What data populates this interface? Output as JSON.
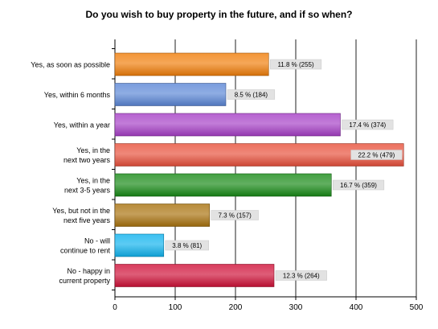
{
  "chart_data": {
    "type": "bar",
    "orientation": "horizontal",
    "title": "Do you wish to buy property in the future, and if so when?",
    "xlabel": "",
    "ylabel": "",
    "xlim": [
      0,
      500
    ],
    "x_ticks": [
      0,
      100,
      200,
      300,
      400,
      500
    ],
    "grid": true,
    "legend": "none",
    "categories": [
      [
        "Yes, as soon as possible"
      ],
      [
        "Yes, within 6 months"
      ],
      [
        "Yes, within a year"
      ],
      [
        "Yes, in the",
        "next two years"
      ],
      [
        "Yes, in the",
        "next 3-5 years"
      ],
      [
        "Yes, but not in the",
        "next five years"
      ],
      [
        "No - will",
        "continue to rent"
      ],
      [
        "No - happy in",
        "current property"
      ]
    ],
    "values": [
      255,
      184,
      374,
      479,
      359,
      157,
      81,
      264
    ],
    "data_labels": [
      "11.8 % (255)",
      "8.5 % (184)",
      "17.4 % (374)",
      "22.2 % (479)",
      "16.7 % (359)",
      "7.3 % (157)",
      "3.8 % (81)",
      "12.3 % (264)"
    ],
    "colors": [
      "#F07E0A",
      "#5B86D6",
      "#A63FC6",
      "#E8503B",
      "#188A17",
      "#A8720E",
      "#10B2EE",
      "#CF1138"
    ]
  }
}
